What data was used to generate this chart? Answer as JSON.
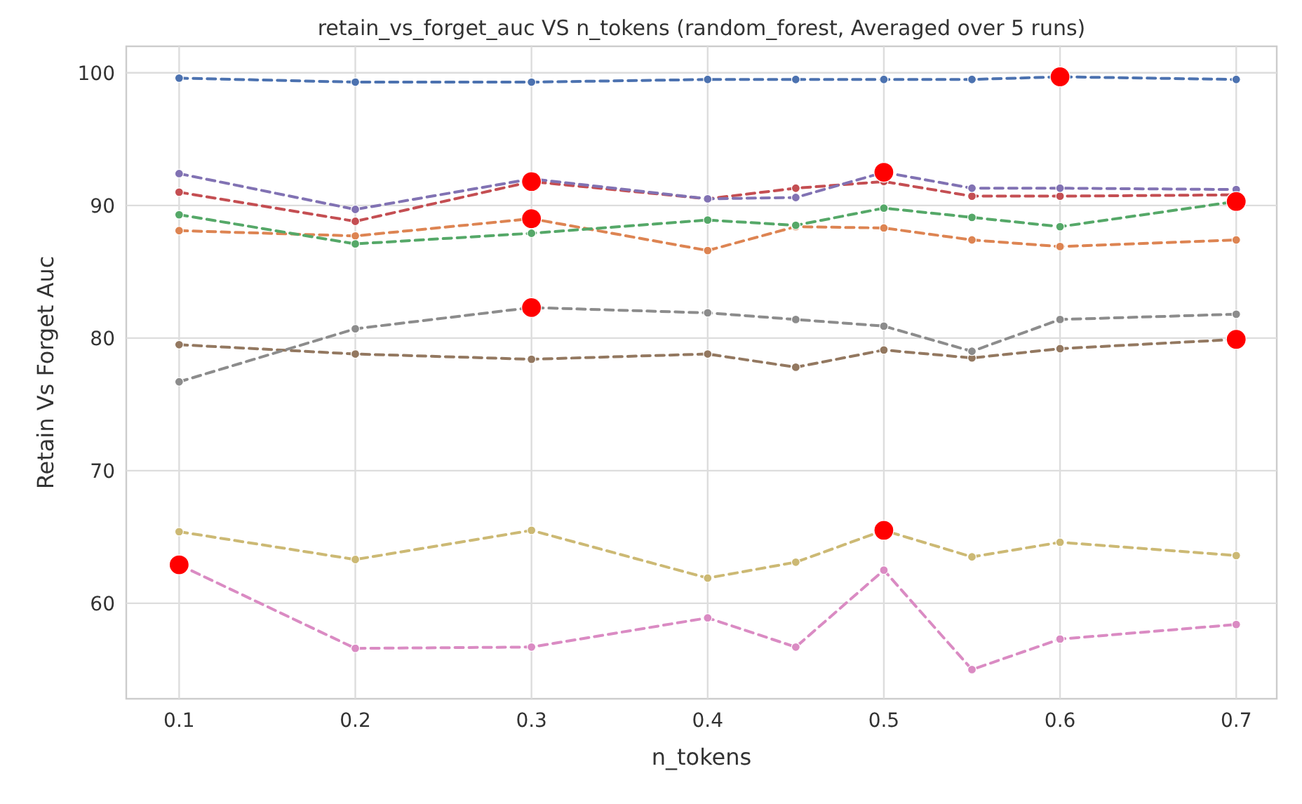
{
  "chart_data": {
    "type": "line",
    "title": "retain_vs_forget_auc VS n_tokens (random_forest, Averaged over 5 runs)",
    "xlabel": "n_tokens",
    "ylabel": "Retain Vs Forget Auc",
    "x": [
      0.1,
      0.2,
      0.3,
      0.4,
      0.45,
      0.5,
      0.55,
      0.6,
      0.7
    ],
    "xlim": [
      0.07,
      0.723
    ],
    "xticks": [
      0.1,
      0.2,
      0.3,
      0.4,
      0.5,
      0.6,
      0.7
    ],
    "ylim": [
      52.8,
      102
    ],
    "yticks": [
      60,
      70,
      80,
      90,
      100
    ],
    "grid": true,
    "marker": "circle",
    "line_style": "dashed",
    "series": [
      {
        "color": "#4c72b0",
        "values": [
          99.6,
          99.3,
          99.3,
          99.5,
          99.5,
          99.5,
          99.5,
          99.7,
          99.5
        ]
      },
      {
        "color": "#dd8452",
        "values": [
          88.1,
          87.7,
          89.0,
          86.6,
          88.4,
          88.3,
          87.4,
          86.9,
          87.4
        ]
      },
      {
        "color": "#55a868",
        "values": [
          89.3,
          87.1,
          87.9,
          88.9,
          88.5,
          89.8,
          89.1,
          88.4,
          90.3
        ]
      },
      {
        "color": "#c44e52",
        "values": [
          91.0,
          88.8,
          91.8,
          90.5,
          91.3,
          91.8,
          90.7,
          90.7,
          90.8
        ]
      },
      {
        "color": "#8172b3",
        "values": [
          92.4,
          89.7,
          92.0,
          90.5,
          90.6,
          92.5,
          91.3,
          91.3,
          91.2
        ]
      },
      {
        "color": "#937860",
        "values": [
          79.5,
          78.8,
          78.4,
          78.8,
          77.8,
          79.1,
          78.5,
          79.2,
          79.9
        ]
      },
      {
        "color": "#da8bc3",
        "values": [
          62.9,
          56.6,
          56.7,
          58.9,
          56.7,
          62.5,
          55.0,
          57.3,
          58.4
        ]
      },
      {
        "color": "#8c8c8c",
        "values": [
          76.7,
          80.7,
          82.3,
          81.9,
          81.4,
          80.9,
          79.0,
          81.4,
          81.8
        ]
      },
      {
        "color": "#ccb974",
        "values": [
          65.4,
          63.3,
          65.5,
          61.9,
          63.1,
          65.5,
          63.5,
          64.6,
          63.6
        ]
      },
      {
        "type": "scatter",
        "color": "#ff0000",
        "x": [
          0.1,
          0.3,
          0.3,
          0.3,
          0.5,
          0.5,
          0.6,
          0.7,
          0.7
        ],
        "values": [
          62.9,
          91.8,
          89.0,
          82.3,
          92.5,
          65.5,
          99.7,
          90.3,
          79.9
        ]
      }
    ]
  }
}
